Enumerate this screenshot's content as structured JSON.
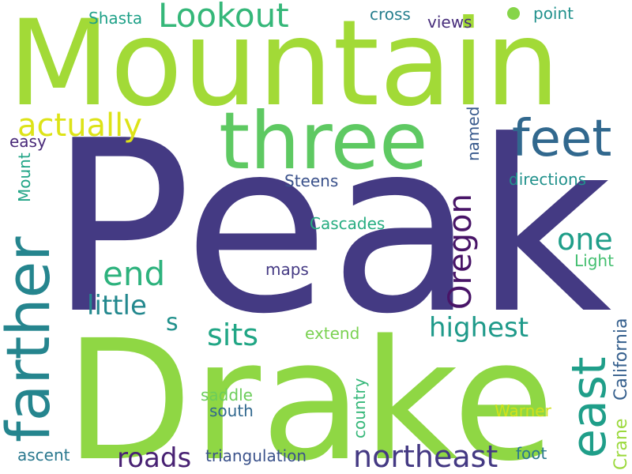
{
  "background": "#ffffff",
  "words": [
    {
      "text": "Peak",
      "color": "#443a83"
    },
    {
      "text": "Drake",
      "color": "#8fd744"
    },
    {
      "text": "Mountain",
      "color": "#a2da37"
    },
    {
      "text": "three",
      "color": "#5ec962"
    },
    {
      "text": "feet",
      "color": "#31688e"
    },
    {
      "text": "farther",
      "color": "#25858e"
    },
    {
      "text": "east",
      "color": "#1f9e89"
    },
    {
      "text": "northeast",
      "color": "#443983"
    },
    {
      "text": "Lookout",
      "color": "#35b779"
    },
    {
      "text": "actually",
      "color": "#dde318"
    },
    {
      "text": "Oregon",
      "color": "#481467"
    },
    {
      "text": "roads",
      "color": "#482173"
    },
    {
      "text": "one",
      "color": "#1f9e89"
    },
    {
      "text": "end",
      "color": "#2db27d"
    },
    {
      "text": "highest",
      "color": "#1f9a8a"
    },
    {
      "text": "sits",
      "color": "#21a685"
    },
    {
      "text": "little",
      "color": "#23888e"
    },
    {
      "text": "s",
      "color": "#21918c"
    },
    {
      "text": "California",
      "color": "#355f8d"
    },
    {
      "text": "Crane",
      "color": "#9bd93c"
    },
    {
      "text": "Warner",
      "color": "#d0e11c"
    },
    {
      "text": "foot",
      "color": "#2a788e"
    },
    {
      "text": "triangulation",
      "color": "#3b528b"
    },
    {
      "text": "country",
      "color": "#35b779"
    },
    {
      "text": "extend",
      "color": "#7ad151"
    },
    {
      "text": "saddle",
      "color": "#6ccd5a"
    },
    {
      "text": "south",
      "color": "#31688e"
    },
    {
      "text": "ascent",
      "color": "#2a788e"
    },
    {
      "text": "maps",
      "color": "#443983"
    },
    {
      "text": "Cascades",
      "color": "#27ad81"
    },
    {
      "text": "Steens",
      "color": "#3b528b"
    },
    {
      "text": "directions",
      "color": "#21918c"
    },
    {
      "text": "Light",
      "color": "#44bf70"
    },
    {
      "text": "named",
      "color": "#38598c"
    },
    {
      "text": "Mount",
      "color": "#20a486"
    },
    {
      "text": "easy",
      "color": "#482878"
    },
    {
      "text": "Shasta",
      "color": "#1fa188"
    },
    {
      "text": "cross",
      "color": "#277f8e"
    },
    {
      "text": "views",
      "color": "#472d7b"
    },
    {
      "text": "point",
      "color": "#21918c"
    }
  ]
}
